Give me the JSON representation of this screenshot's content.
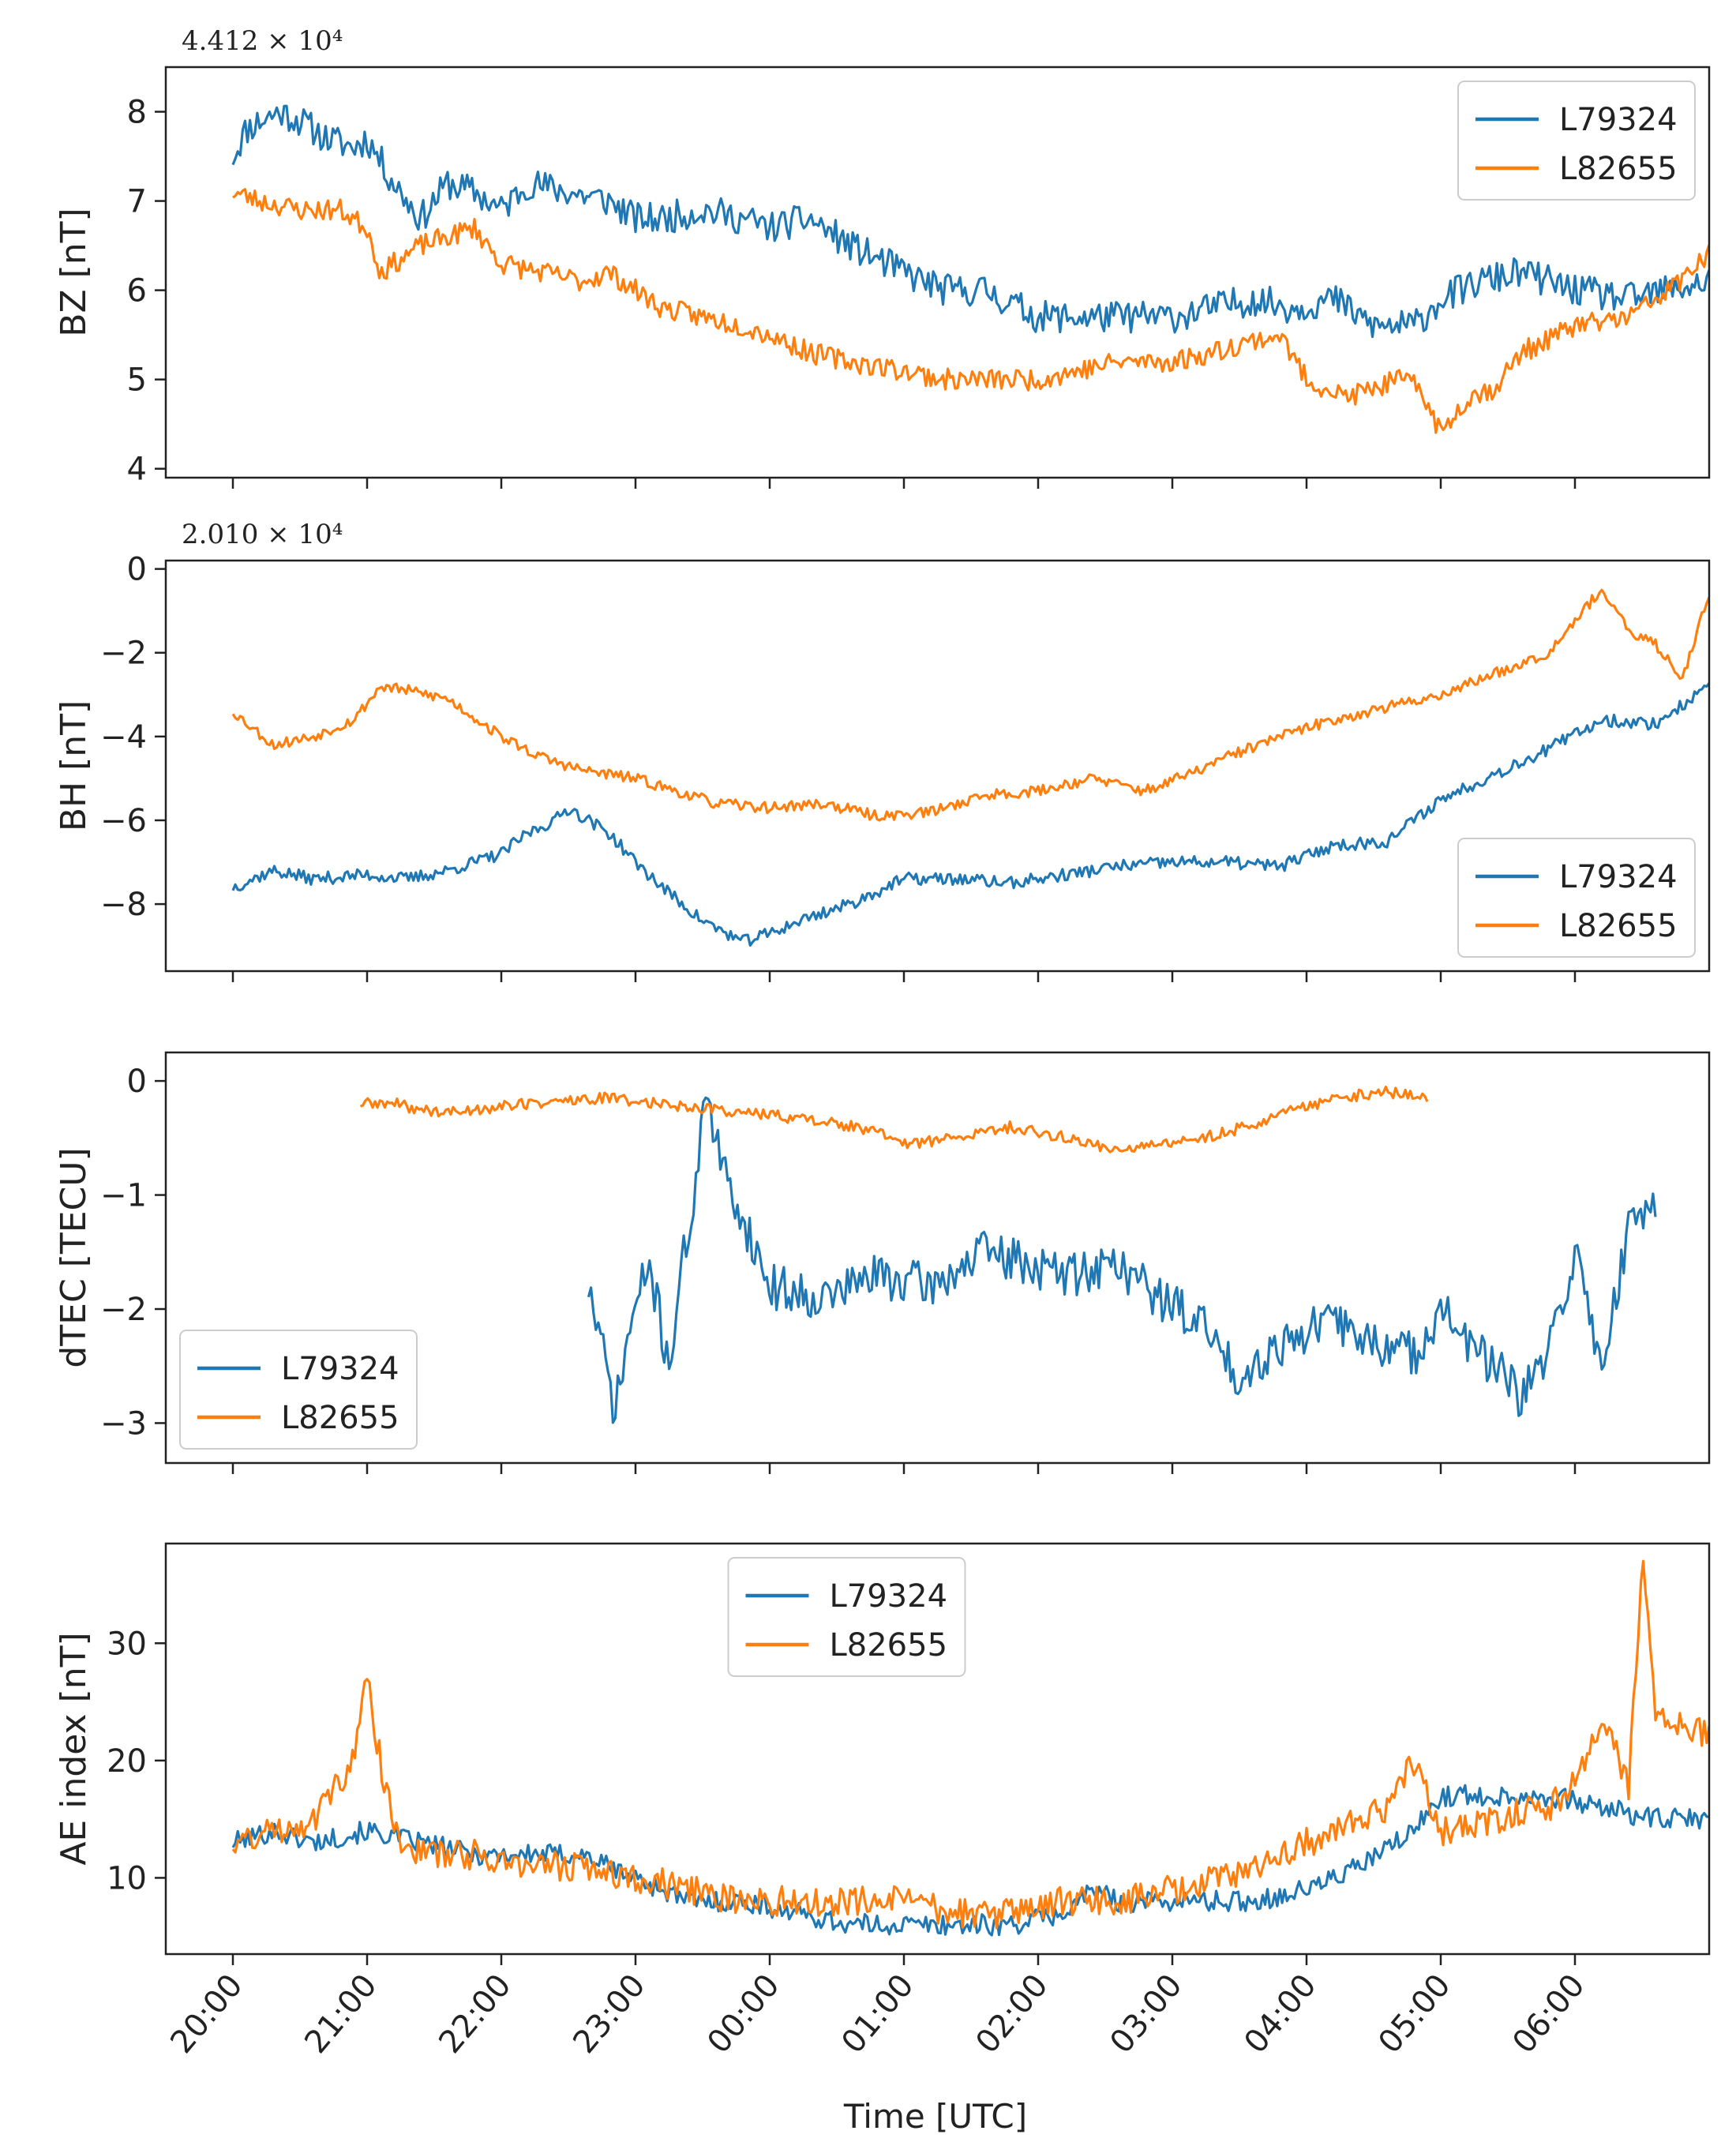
{
  "figure": {
    "xlabel": "Time [UTC]",
    "x_ticks": [
      "20:00",
      "21:00",
      "22:00",
      "23:00",
      "00:00",
      "01:00",
      "02:00",
      "03:00",
      "04:00",
      "05:00",
      "06:00"
    ],
    "colors": {
      "L79324": "#1f77b4",
      "L82655": "#ff7f0e"
    }
  },
  "chart_data": [
    {
      "type": "line",
      "ylabel": "BZ [nT]",
      "offset_label": "4.412 × 10⁴",
      "xlim": [
        -0.5,
        11.0
      ],
      "ylim": [
        3.9,
        8.5
      ],
      "yticks": [
        4,
        5,
        6,
        7,
        8
      ],
      "legend": "top-right",
      "series": [
        {
          "name": "L79324",
          "seed": 11,
          "noise": 0.18,
          "x": [
            0,
            0.1,
            0.2,
            0.35,
            0.5,
            0.7,
            0.9,
            1.0,
            1.2,
            1.4,
            1.6,
            1.8,
            2.0,
            2.2,
            2.5,
            2.8,
            3.0,
            3.2,
            3.5,
            3.8,
            4.0,
            4.3,
            4.6,
            5.0,
            5.3,
            5.6,
            6.0,
            6.5,
            7.0,
            7.3,
            7.6,
            7.9,
            8.2,
            8.5,
            8.8,
            9.0,
            9.3,
            9.6,
            10.0,
            10.4,
            10.7,
            11.0
          ],
          "y": [
            7.5,
            7.8,
            7.9,
            8.0,
            7.9,
            7.7,
            7.6,
            7.7,
            7.2,
            6.8,
            7.2,
            7.1,
            6.9,
            7.2,
            7.1,
            7.0,
            6.8,
            6.8,
            6.9,
            6.8,
            6.7,
            6.8,
            6.5,
            6.2,
            6.0,
            6.0,
            5.7,
            5.7,
            5.7,
            5.8,
            5.9,
            5.8,
            5.9,
            5.6,
            5.6,
            5.9,
            6.1,
            6.2,
            6.0,
            5.9,
            6.0,
            6.1
          ]
        },
        {
          "name": "L82655",
          "seed": 23,
          "noise": 0.12,
          "x": [
            0,
            0.2,
            0.5,
            0.8,
            1.0,
            1.1,
            1.2,
            1.4,
            1.6,
            1.8,
            2.0,
            2.3,
            2.6,
            2.8,
            3.0,
            3.2,
            3.5,
            3.8,
            4.0,
            4.3,
            4.6,
            5.0,
            5.3,
            5.6,
            6.0,
            6.3,
            6.6,
            7.0,
            7.3,
            7.5,
            7.8,
            8.0,
            8.3,
            8.5,
            8.7,
            8.85,
            9.0,
            9.2,
            9.4,
            9.6,
            10.0,
            10.4,
            10.7,
            11.0
          ],
          "y": [
            7.1,
            7.0,
            6.9,
            6.9,
            6.7,
            6.2,
            6.3,
            6.5,
            6.6,
            6.7,
            6.3,
            6.2,
            6.1,
            6.2,
            6.0,
            5.8,
            5.7,
            5.6,
            5.5,
            5.3,
            5.2,
            5.1,
            5.0,
            5.0,
            5.0,
            5.1,
            5.2,
            5.2,
            5.3,
            5.4,
            5.5,
            5.0,
            4.8,
            4.9,
            5.0,
            4.9,
            4.4,
            4.8,
            4.9,
            5.3,
            5.6,
            5.7,
            6.0,
            6.4
          ]
        }
      ]
    },
    {
      "type": "line",
      "ylabel": "BH [nT]",
      "offset_label": "2.010 × 10⁴",
      "xlim": [
        -0.5,
        11.0
      ],
      "ylim": [
        -9.6,
        0.2
      ],
      "yticks": [
        0,
        -2,
        -4,
        -6,
        -8
      ],
      "legend": "bottom-right",
      "series": [
        {
          "name": "L79324",
          "seed": 37,
          "noise": 0.15,
          "x": [
            0,
            0.3,
            0.6,
            1.0,
            1.3,
            1.6,
            2.0,
            2.2,
            2.4,
            2.5,
            2.8,
            3.0,
            3.2,
            3.5,
            3.8,
            4.0,
            4.3,
            4.6,
            5.0,
            5.4,
            5.8,
            6.2,
            6.6,
            7.0,
            7.4,
            7.8,
            8.2,
            8.6,
            8.8,
            9.0,
            9.4,
            9.8,
            10.2,
            10.6,
            11.0
          ],
          "y": [
            -7.6,
            -7.2,
            -7.4,
            -7.3,
            -7.4,
            -7.2,
            -6.8,
            -6.3,
            -6.0,
            -5.7,
            -6.3,
            -7.0,
            -7.6,
            -8.4,
            -8.9,
            -8.7,
            -8.3,
            -8.0,
            -7.4,
            -7.4,
            -7.5,
            -7.3,
            -7.1,
            -7.0,
            -7.0,
            -7.1,
            -6.6,
            -6.5,
            -6.0,
            -5.5,
            -4.9,
            -4.3,
            -3.6,
            -3.7,
            -2.8
          ]
        },
        {
          "name": "L82655",
          "seed": 53,
          "noise": 0.13,
          "x": [
            0,
            0.3,
            0.6,
            0.9,
            1.1,
            1.3,
            1.6,
            2.0,
            2.3,
            2.6,
            3.0,
            3.3,
            3.6,
            4.0,
            4.4,
            4.8,
            5.2,
            5.6,
            6.0,
            6.4,
            6.8,
            7.2,
            7.4,
            7.8,
            8.2,
            8.6,
            9.0,
            9.4,
            9.8,
            10.0,
            10.2,
            10.4,
            10.6,
            10.8,
            11.0
          ],
          "y": [
            -3.4,
            -4.2,
            -4.0,
            -3.6,
            -2.8,
            -2.9,
            -3.1,
            -4.0,
            -4.5,
            -4.8,
            -5.0,
            -5.3,
            -5.6,
            -5.7,
            -5.6,
            -5.9,
            -5.8,
            -5.4,
            -5.3,
            -5.0,
            -5.3,
            -4.8,
            -4.5,
            -4.0,
            -3.6,
            -3.3,
            -3.0,
            -2.5,
            -2.0,
            -1.2,
            -0.5,
            -1.5,
            -1.8,
            -2.6,
            -0.6
          ]
        }
      ]
    },
    {
      "type": "line",
      "ylabel": "dTEC [TECU]",
      "xlim": [
        -0.5,
        11.0
      ],
      "ylim": [
        -3.35,
        0.25
      ],
      "yticks": [
        0,
        -1,
        -2,
        -3
      ],
      "legend": "bottom-left",
      "series": [
        {
          "name": "L79324",
          "seed": 71,
          "noise": 0.2,
          "x": [
            2.65,
            2.85,
            2.95,
            3.1,
            3.25,
            3.35,
            3.45,
            3.5,
            3.65,
            3.8,
            4.0,
            4.4,
            4.8,
            5.2,
            5.6,
            5.9,
            6.2,
            6.6,
            6.9,
            7.2,
            7.5,
            7.8,
            8.0,
            8.2,
            8.5,
            8.8,
            9.0,
            9.2,
            9.4,
            9.6,
            9.8,
            10.0,
            10.2,
            10.4,
            10.6
          ],
          "y": [
            -1.8,
            -2.9,
            -2.2,
            -1.6,
            -2.5,
            -1.6,
            -1.0,
            0.0,
            -0.8,
            -1.2,
            -1.8,
            -1.9,
            -1.7,
            -1.8,
            -1.5,
            -1.6,
            -1.7,
            -1.6,
            -1.9,
            -2.1,
            -2.6,
            -2.3,
            -2.2,
            -2.1,
            -2.3,
            -2.4,
            -2.0,
            -2.3,
            -2.5,
            -2.8,
            -2.4,
            -1.5,
            -2.5,
            -1.3,
            -1.0
          ]
        },
        {
          "name": "L82655",
          "seed": 89,
          "noise": 0.05,
          "x": [
            0.95,
            1.2,
            1.4,
            1.6,
            2.0,
            2.4,
            2.8,
            3.2,
            3.6,
            4.0,
            4.4,
            4.8,
            5.0,
            5.4,
            5.8,
            6.2,
            6.6,
            7.0,
            7.4,
            7.8,
            8.2,
            8.6,
            8.9
          ],
          "y": [
            -0.2,
            -0.2,
            -0.25,
            -0.28,
            -0.22,
            -0.18,
            -0.15,
            -0.2,
            -0.25,
            -0.3,
            -0.35,
            -0.45,
            -0.55,
            -0.5,
            -0.4,
            -0.5,
            -0.6,
            -0.55,
            -0.45,
            -0.3,
            -0.15,
            -0.1,
            -0.15
          ]
        }
      ]
    },
    {
      "type": "line",
      "ylabel": "AE index [nT]",
      "xlim": [
        -0.5,
        11.0
      ],
      "ylim": [
        3.5,
        38.5
      ],
      "yticks": [
        10,
        20,
        30
      ],
      "legend": "top-center",
      "series": [
        {
          "name": "L79324",
          "seed": 101,
          "noise": 0.9,
          "x": [
            0,
            0.3,
            0.6,
            1.0,
            1.4,
            1.8,
            2.2,
            2.6,
            3.0,
            3.4,
            3.8,
            4.2,
            4.6,
            5.0,
            5.4,
            5.8,
            6.2,
            6.4,
            6.6,
            6.8,
            7.2,
            7.6,
            8.0,
            8.4,
            8.8,
            9.0,
            9.4,
            9.8,
            10.2,
            10.6,
            11.0
          ],
          "y": [
            13,
            14,
            13,
            14,
            13,
            12,
            12,
            12,
            10,
            8,
            8,
            7,
            6,
            6,
            6,
            6,
            7,
            9,
            8,
            8,
            8,
            8,
            9,
            11,
            14,
            17,
            17,
            17,
            16,
            15,
            15
          ]
        },
        {
          "name": "L82655",
          "seed": 131,
          "noise": 1.3,
          "x": [
            0,
            0.3,
            0.6,
            0.9,
            1.0,
            1.1,
            1.2,
            1.4,
            1.8,
            2.2,
            2.6,
            3.0,
            3.4,
            3.8,
            4.2,
            4.6,
            5.0,
            5.4,
            5.8,
            6.2,
            6.6,
            7.0,
            7.4,
            7.8,
            8.2,
            8.6,
            8.8,
            9.0,
            9.4,
            9.8,
            10.0,
            10.2,
            10.4,
            10.5,
            10.6,
            10.8,
            11.0
          ],
          "y": [
            13,
            14,
            15,
            20,
            27,
            20,
            14,
            12,
            12,
            11,
            11,
            10,
            9,
            8,
            8,
            8,
            8,
            7,
            7,
            8,
            8,
            9,
            10,
            12,
            14,
            16,
            20,
            14,
            15,
            16,
            18,
            24,
            18,
            37,
            24,
            23,
            22
          ]
        }
      ]
    }
  ]
}
